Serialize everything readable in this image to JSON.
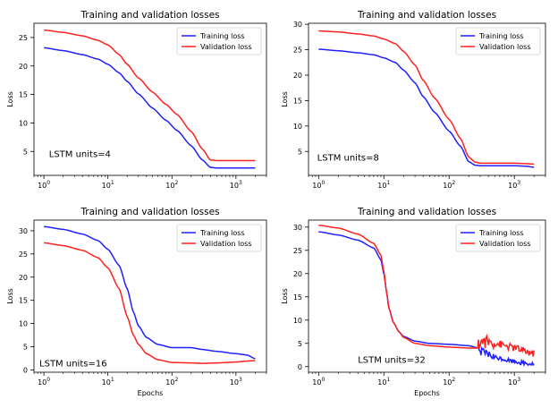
{
  "figure": {
    "colors": {
      "training": "#1f1fff",
      "validation": "#ff2020",
      "axis": "#000000"
    }
  },
  "chart_data": [
    {
      "type": "line",
      "title": "Training and validation losses",
      "xlabel": "",
      "ylabel": "Loss",
      "xscale": "log",
      "xlim": [
        0.7,
        3000
      ],
      "ylim": [
        0.8,
        27.5
      ],
      "xticks": [
        {
          "value": 1,
          "base": "10",
          "exp": "0"
        },
        {
          "value": 10,
          "base": "10",
          "exp": "1"
        },
        {
          "value": 100,
          "base": "10",
          "exp": "2"
        },
        {
          "value": 1000,
          "base": "10",
          "exp": "3"
        }
      ],
      "yticks": [
        5,
        10,
        15,
        20,
        25
      ],
      "annotation": "LSTM units=4",
      "annotation_pos": {
        "x": 1.2,
        "y": 4.0
      },
      "legend": {
        "position": "top-right",
        "entries": [
          "Training loss",
          "Validation loss"
        ]
      },
      "series": [
        {
          "name": "Training loss",
          "color": "#1f1fff",
          "x": [
            1,
            2,
            4,
            7,
            10,
            15,
            20,
            30,
            50,
            80,
            120,
            200,
            300,
            400,
            500,
            1000,
            2000
          ],
          "y": [
            23.2,
            22.7,
            22.0,
            21.2,
            20.3,
            18.8,
            17.3,
            15.1,
            12.6,
            10.5,
            8.7,
            6.0,
            3.5,
            2.2,
            2.1,
            2.1,
            2.1
          ]
        },
        {
          "name": "Validation loss",
          "color": "#ff2020",
          "x": [
            1,
            2,
            4,
            7,
            10,
            15,
            20,
            30,
            50,
            80,
            120,
            200,
            300,
            400,
            500,
            1000,
            2000
          ],
          "y": [
            26.3,
            25.9,
            25.3,
            24.5,
            23.7,
            22.0,
            20.3,
            17.9,
            15.4,
            13.3,
            11.5,
            8.5,
            5.4,
            3.5,
            3.4,
            3.4,
            3.4
          ]
        }
      ]
    },
    {
      "type": "line",
      "title": "Training and validation losses",
      "xlabel": "",
      "ylabel": "Loss",
      "xscale": "log",
      "xlim": [
        0.7,
        3000
      ],
      "ylim": [
        0.3,
        30.2
      ],
      "xticks": [
        {
          "value": 1,
          "base": "10",
          "exp": "0"
        },
        {
          "value": 10,
          "base": "10",
          "exp": "1"
        },
        {
          "value": 100,
          "base": "10",
          "exp": "2"
        },
        {
          "value": 1000,
          "base": "10",
          "exp": "3"
        }
      ],
      "yticks": [
        5,
        10,
        15,
        20,
        25,
        30
      ],
      "annotation": "LSTM units=8",
      "annotation_pos": {
        "x": 0.95,
        "y": 3.2
      },
      "legend": {
        "position": "top-right",
        "entries": [
          "Training loss",
          "Validation loss"
        ]
      },
      "series": [
        {
          "name": "Training loss",
          "color": "#1f1fff",
          "x": [
            1,
            2,
            4,
            7,
            10,
            15,
            20,
            30,
            40,
            60,
            100,
            150,
            200,
            250,
            300,
            500,
            1000,
            1500,
            2000
          ],
          "y": [
            25.1,
            24.8,
            24.4,
            24.0,
            23.4,
            22.5,
            21.0,
            18.5,
            15.8,
            12.7,
            9.0,
            6.0,
            3.0,
            2.3,
            2.2,
            2.2,
            2.2,
            2.1,
            1.9
          ]
        },
        {
          "name": "Validation loss",
          "color": "#ff2020",
          "x": [
            1,
            2,
            4,
            7,
            10,
            15,
            20,
            30,
            40,
            60,
            100,
            150,
            200,
            250,
            300,
            500,
            1000,
            1500,
            2000
          ],
          "y": [
            28.7,
            28.5,
            28.1,
            27.7,
            27.1,
            26.2,
            24.7,
            22.0,
            19.0,
            15.5,
            11.3,
            7.5,
            3.9,
            2.9,
            2.7,
            2.7,
            2.7,
            2.6,
            2.5
          ]
        }
      ]
    },
    {
      "type": "line",
      "title": "Training and validation losses",
      "xlabel": "Epochs",
      "ylabel": "Loss",
      "xscale": "log",
      "xlim": [
        0.7,
        3000
      ],
      "ylim": [
        -0.5,
        32.3
      ],
      "xticks": [
        {
          "value": 1,
          "base": "10",
          "exp": "0"
        },
        {
          "value": 10,
          "base": "10",
          "exp": "1"
        },
        {
          "value": 100,
          "base": "10",
          "exp": "2"
        },
        {
          "value": 1000,
          "base": "10",
          "exp": "3"
        }
      ],
      "yticks": [
        0,
        5,
        10,
        15,
        20,
        25,
        30
      ],
      "annotation": "LSTM units=16",
      "annotation_pos": {
        "x": 0.85,
        "y": 0.8
      },
      "legend": {
        "position": "top-right",
        "entries": [
          "Training loss",
          "Validation loss"
        ]
      },
      "series": [
        {
          "name": "Training loss",
          "color": "#1f1fff",
          "x": [
            1,
            2,
            4,
            7,
            10,
            15,
            20,
            25,
            30,
            40,
            60,
            100,
            200,
            300,
            500,
            1000,
            1500,
            2000
          ],
          "y": [
            30.9,
            30.3,
            29.3,
            27.9,
            26.0,
            22.5,
            17.5,
            12.5,
            9.5,
            7.0,
            5.5,
            4.8,
            4.8,
            4.4,
            4.0,
            3.5,
            3.2,
            2.4
          ]
        },
        {
          "name": "Validation loss",
          "color": "#ff2020",
          "x": [
            1,
            2,
            4,
            7,
            10,
            15,
            20,
            25,
            30,
            40,
            60,
            100,
            200,
            300,
            500,
            1000,
            1500,
            2000
          ],
          "y": [
            27.4,
            26.8,
            25.8,
            24.2,
            22.0,
            17.5,
            11.5,
            7.5,
            5.5,
            3.5,
            2.2,
            1.6,
            1.5,
            1.4,
            1.5,
            1.7,
            1.9,
            2.0
          ]
        }
      ]
    },
    {
      "type": "line",
      "title": "Training and validation losses",
      "xlabel": "Epochs",
      "ylabel": "Loss",
      "xscale": "log",
      "xlim": [
        0.7,
        3000
      ],
      "ylim": [
        -1.2,
        31.5
      ],
      "xticks": [
        {
          "value": 1,
          "base": "10",
          "exp": "0"
        },
        {
          "value": 10,
          "base": "10",
          "exp": "1"
        },
        {
          "value": 100,
          "base": "10",
          "exp": "2"
        },
        {
          "value": 1000,
          "base": "10",
          "exp": "3"
        }
      ],
      "yticks": [
        0,
        5,
        10,
        15,
        20,
        25,
        30
      ],
      "annotation": "LSTM units=32",
      "annotation_pos": {
        "x": 4.0,
        "y": 0.8
      },
      "legend": {
        "position": "top-right",
        "entries": [
          "Training loss",
          "Validation loss"
        ]
      },
      "series": [
        {
          "name": "Training loss",
          "color": "#1f1fff",
          "x": [
            1,
            2,
            4,
            7,
            9,
            10,
            11,
            12,
            14,
            17,
            20,
            30,
            50,
            100,
            200,
            280,
            300,
            500,
            1000,
            1500,
            2000
          ],
          "y": [
            29.0,
            28.3,
            27.2,
            25.5,
            23.0,
            20.0,
            16.0,
            12.5,
            9.5,
            7.5,
            6.5,
            5.5,
            5.0,
            4.8,
            4.5,
            4.0,
            3.0,
            1.8,
            1.0,
            0.6,
            0.4
          ],
          "noise": {
            "from": 280,
            "to": 2000,
            "amp": 1.2
          }
        },
        {
          "name": "Validation loss",
          "color": "#ff2020",
          "x": [
            1,
            2,
            4,
            7,
            9,
            10,
            11,
            12,
            14,
            17,
            20,
            30,
            50,
            100,
            200,
            280,
            300,
            500,
            1000,
            1500,
            2000
          ],
          "y": [
            30.4,
            29.8,
            28.5,
            26.5,
            24.0,
            20.5,
            16.0,
            12.5,
            9.5,
            7.5,
            6.3,
            5.0,
            4.5,
            4.2,
            4.0,
            4.0,
            5.0,
            4.8,
            3.8,
            3.0,
            2.5
          ],
          "noise": {
            "from": 280,
            "to": 2000,
            "amp": 2.0
          }
        }
      ]
    }
  ]
}
